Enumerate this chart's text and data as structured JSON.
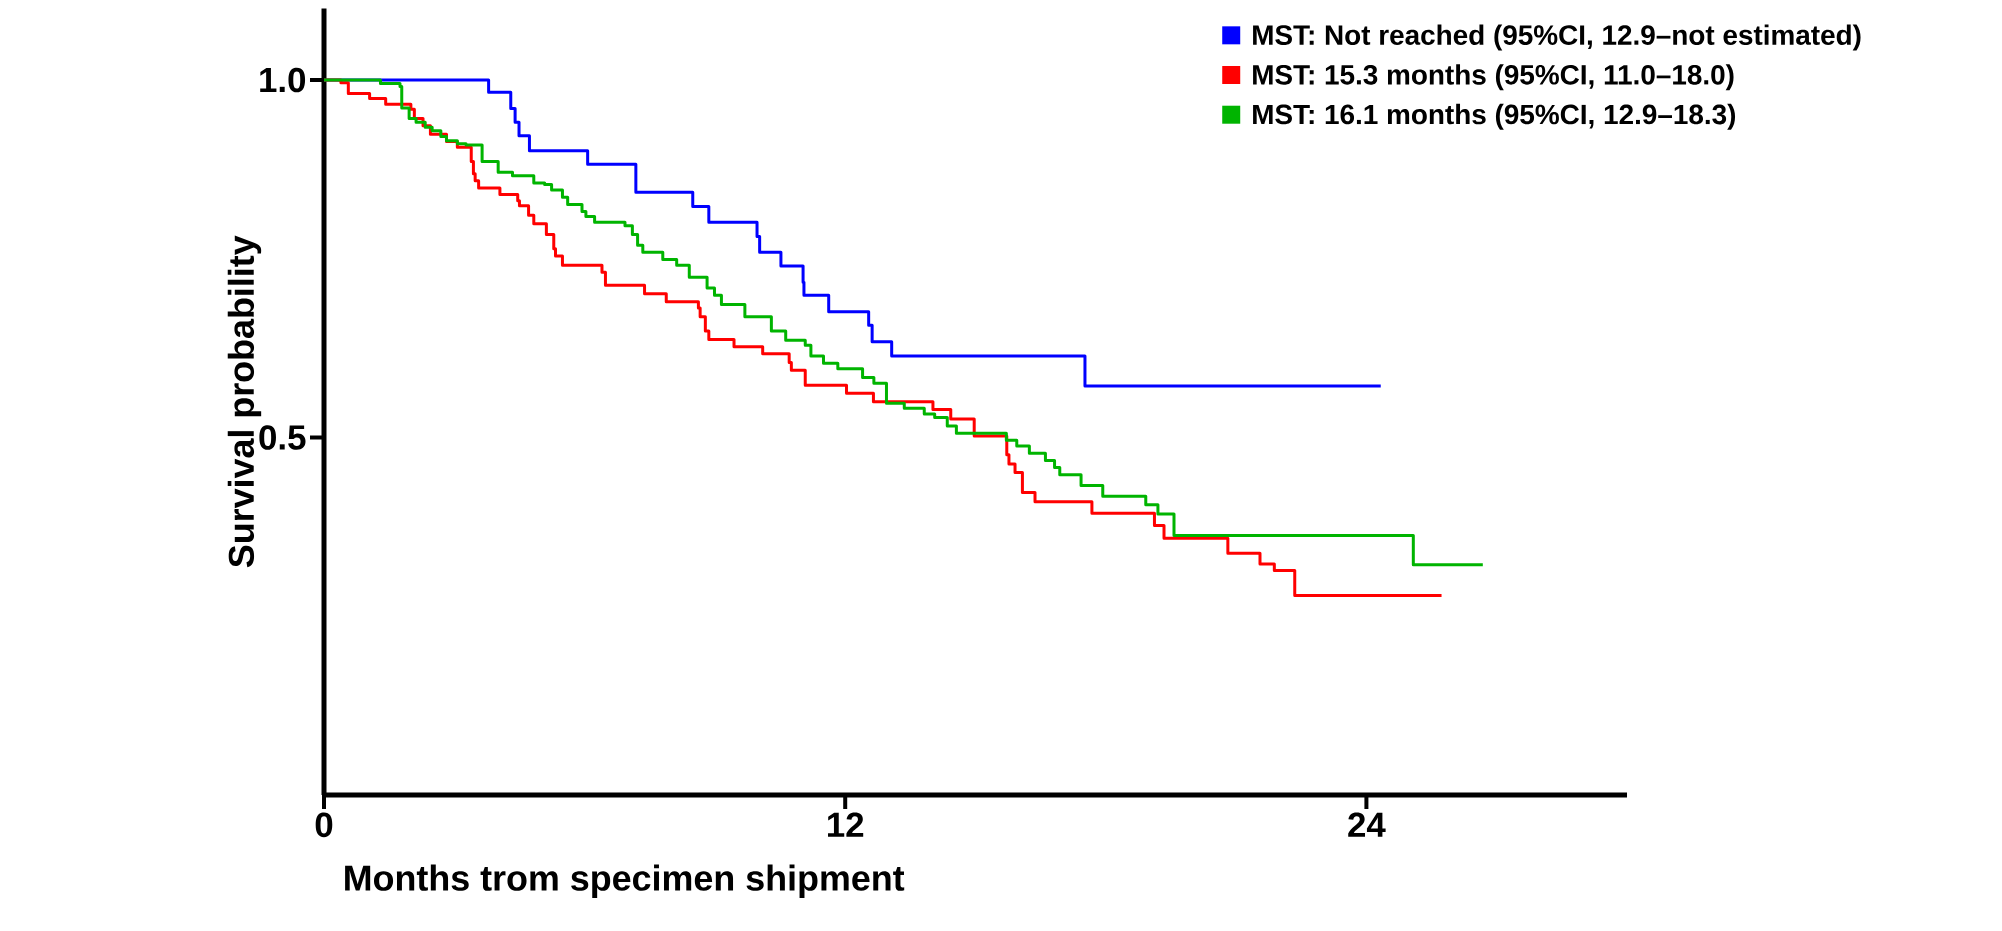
{
  "chart_data": {
    "type": "step",
    "xlabel": "Months trom specimen shipment",
    "ylabel": "Survival probability",
    "xlim": [
      0,
      30
    ],
    "ylim": [
      0,
      1.1
    ],
    "xticks": [
      0,
      12,
      24
    ],
    "yticks": [
      {
        "value": 0.5,
        "label": "0.5"
      },
      {
        "value": 1.0,
        "label": "1.0"
      }
    ],
    "legend": "top right",
    "series": [
      {
        "name": "MST: Not reached (95%CI, 12.9–not estimated)",
        "color": "#0000ff",
        "x": [
          0,
          3.79,
          4.3,
          4.4,
          4.49,
          4.73,
          6.07,
          7.18,
          8.49,
          8.86,
          9.97,
          10.03,
          10.52,
          11.03,
          11.05,
          11.62,
          12.54,
          12.62,
          13.07,
          17.52,
          24.33
        ],
        "values": [
          1.0,
          0.983,
          0.96,
          0.941,
          0.922,
          0.901,
          0.882,
          0.843,
          0.823,
          0.801,
          0.781,
          0.759,
          0.74,
          0.717,
          0.699,
          0.676,
          0.657,
          0.634,
          0.614,
          0.572,
          0.572
        ]
      },
      {
        "name": "MST: 15.3 months (95%CI, 11.0–18.0)",
        "color": "#ff0000",
        "x": [
          0,
          0.39,
          0.56,
          1.05,
          1.42,
          2.0,
          2.08,
          2.28,
          2.45,
          2.82,
          3.07,
          3.39,
          3.44,
          3.48,
          3.56,
          4.05,
          4.46,
          4.5,
          4.71,
          4.83,
          5.12,
          5.29,
          5.33,
          5.49,
          6.4,
          6.48,
          7.38,
          7.88,
          8.62,
          8.66,
          8.78,
          8.86,
          9.44,
          10.1,
          10.71,
          10.76,
          11.08,
          12.03,
          12.65,
          14.02,
          14.43,
          14.97,
          15.72,
          15.77,
          15.91,
          16.08,
          16.37,
          17.68,
          19.12,
          19.34,
          20.81,
          21.55,
          21.88,
          22.35,
          25.73
        ],
        "values": [
          1.0,
          0.996,
          0.981,
          0.974,
          0.966,
          0.959,
          0.946,
          0.936,
          0.924,
          0.914,
          0.906,
          0.886,
          0.869,
          0.859,
          0.849,
          0.84,
          0.831,
          0.824,
          0.811,
          0.799,
          0.784,
          0.764,
          0.754,
          0.741,
          0.731,
          0.713,
          0.701,
          0.69,
          0.681,
          0.669,
          0.649,
          0.637,
          0.627,
          0.617,
          0.605,
          0.594,
          0.573,
          0.562,
          0.55,
          0.539,
          0.526,
          0.502,
          0.476,
          0.463,
          0.451,
          0.423,
          0.41,
          0.394,
          0.377,
          0.359,
          0.338,
          0.323,
          0.314,
          0.279,
          0.279
        ]
      },
      {
        "name": "MST: 16.1 months (95%CI, 12.9–18.3)",
        "color": "#00b400",
        "x": [
          0,
          1.3,
          1.75,
          1.79,
          1.96,
          2.12,
          2.33,
          2.49,
          2.69,
          2.82,
          3.07,
          3.27,
          3.64,
          4.01,
          4.34,
          4.83,
          5.08,
          5.24,
          5.49,
          5.61,
          5.94,
          6.03,
          6.23,
          6.93,
          7.1,
          7.22,
          7.34,
          7.8,
          8.12,
          8.41,
          8.82,
          8.99,
          9.15,
          9.69,
          10.3,
          10.63,
          11.08,
          11.21,
          11.5,
          11.83,
          12.4,
          12.66,
          12.95,
          13.36,
          13.82,
          14.06,
          14.35,
          14.56,
          15.71,
          15.95,
          16.24,
          16.61,
          16.82,
          16.94,
          17.43,
          17.93,
          18.92,
          19.2,
          19.57,
          25.08,
          26.68
        ],
        "values": [
          1.0,
          0.995,
          0.991,
          0.961,
          0.946,
          0.941,
          0.934,
          0.929,
          0.921,
          0.915,
          0.911,
          0.909,
          0.886,
          0.871,
          0.866,
          0.856,
          0.854,
          0.846,
          0.836,
          0.826,
          0.816,
          0.809,
          0.801,
          0.796,
          0.784,
          0.769,
          0.759,
          0.749,
          0.741,
          0.724,
          0.709,
          0.699,
          0.686,
          0.669,
          0.649,
          0.636,
          0.629,
          0.614,
          0.604,
          0.596,
          0.584,
          0.576,
          0.548,
          0.541,
          0.533,
          0.528,
          0.516,
          0.506,
          0.496,
          0.488,
          0.478,
          0.468,
          0.458,
          0.448,
          0.433,
          0.418,
          0.406,
          0.393,
          0.363,
          0.322,
          0.322
        ]
      }
    ]
  }
}
